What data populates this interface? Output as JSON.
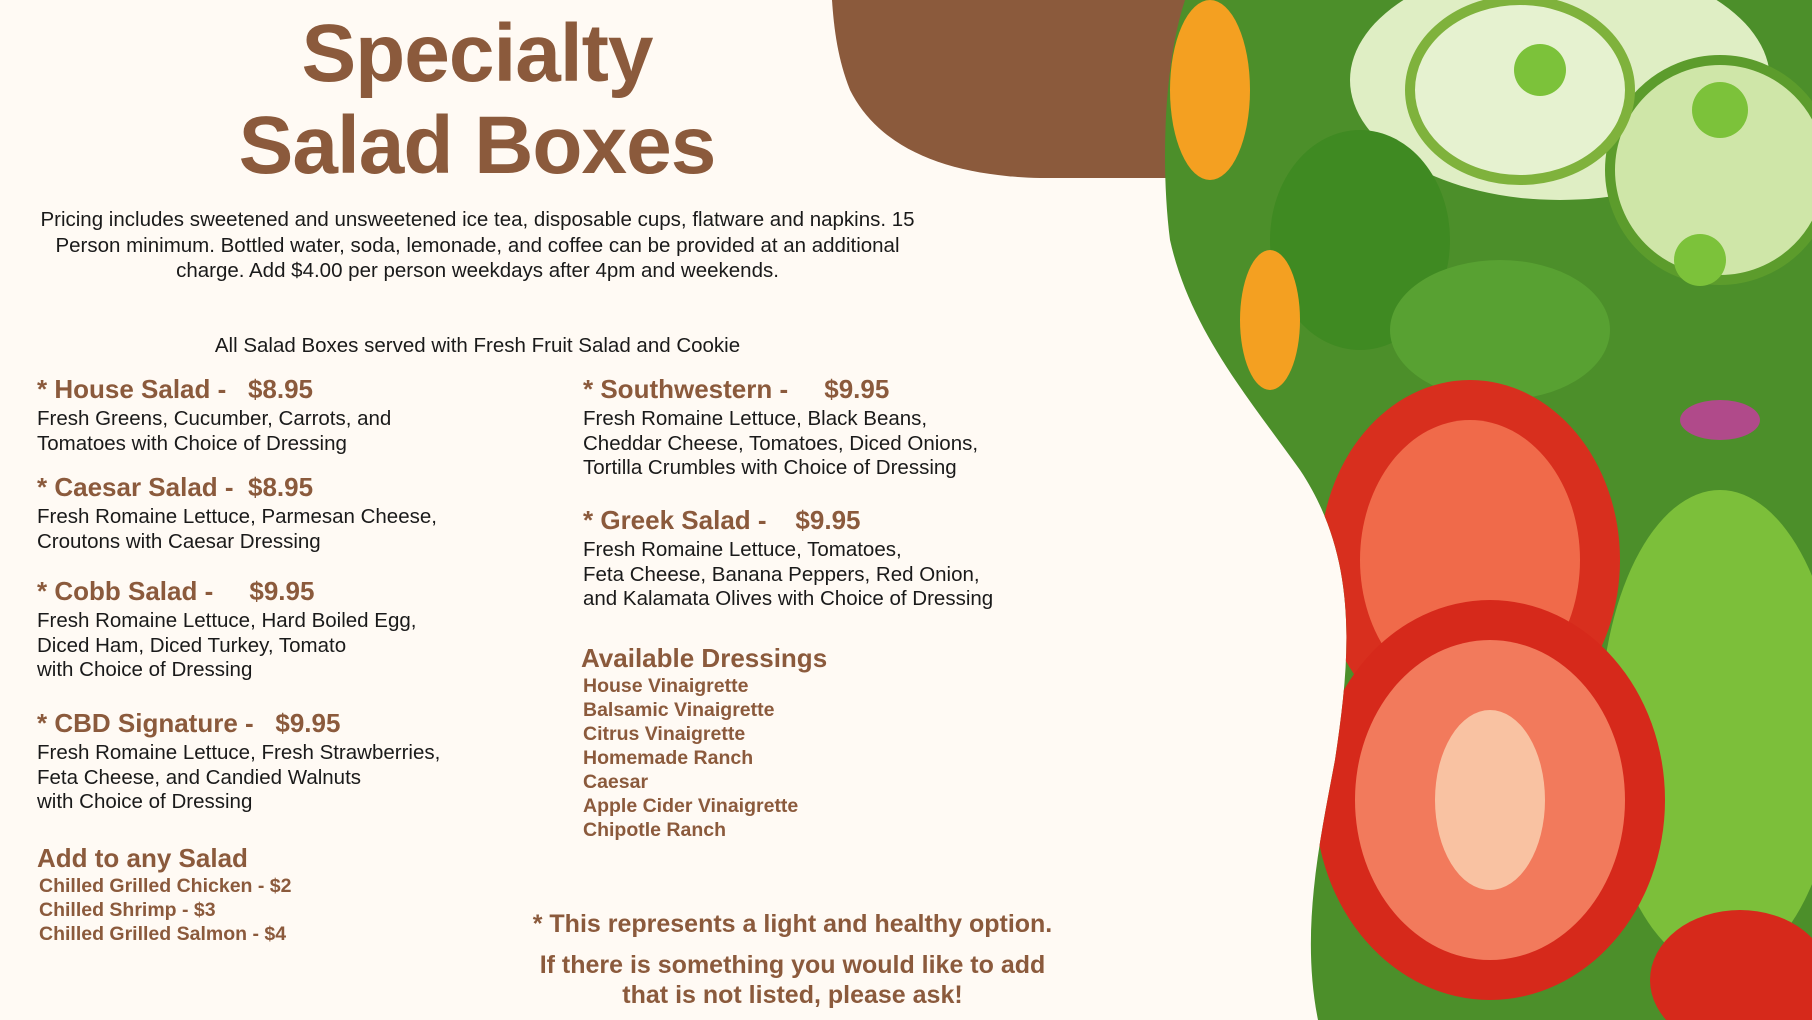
{
  "title": {
    "line1": "Specialty",
    "line2": "Salad Boxes"
  },
  "intro": "Pricing includes sweetened and unsweetened ice tea, disposable cups, flatware and napkins. 15 Person minimum. Bottled water, soda, lemonade, and coffee can be provided at an additional charge. Add $4.00 per person weekdays after 4pm and weekends.",
  "served_with": "All Salad Boxes served with Fresh Fruit Salad and Cookie",
  "salads": [
    {
      "heading": "* House Salad -   $8.95",
      "desc": "Fresh Greens, Cucumber, Carrots, and\nTomatoes with Choice of Dressing"
    },
    {
      "heading": "* Caesar Salad -  $8.95",
      "desc": "Fresh Romaine Lettuce, Parmesan Cheese,\nCroutons with Caesar Dressing"
    },
    {
      "heading": "* Cobb Salad -     $9.95",
      "desc": "Fresh Romaine Lettuce, Hard Boiled Egg,\nDiced Ham, Diced Turkey, Tomato\nwith Choice of Dressing"
    },
    {
      "heading": "* CBD Signature -   $9.95",
      "desc": "Fresh Romaine Lettuce, Fresh Strawberries,\nFeta Cheese, and Candied Walnuts\nwith Choice of Dressing"
    },
    {
      "heading": "* Southwestern -     $9.95",
      "desc": "Fresh Romaine Lettuce, Black Beans,\nCheddar Cheese, Tomatoes, Diced Onions,\nTortilla Crumbles with Choice of Dressing"
    },
    {
      "heading": "* Greek Salad -    $9.95",
      "desc": "Fresh Romaine Lettuce, Tomatoes,\nFeta Cheese, Banana Peppers, Red Onion,\nand Kalamata Olives with Choice of Dressing"
    }
  ],
  "add_ons": {
    "heading": "Add to any Salad",
    "items": [
      "Chilled Grilled Chicken - $2",
      "Chilled Shrimp - $3",
      "Chilled Grilled Salmon - $4"
    ]
  },
  "dressings": {
    "heading": "Available Dressings",
    "items": [
      "House Vinaigrette",
      "Balsamic Vinaigrette",
      "Citrus Vinaigrette",
      "Homemade Ranch",
      "Caesar",
      "Apple Cider Vinaigrette",
      "Chipotle Ranch"
    ]
  },
  "footer": {
    "note": "* This represents a light and healthy option.",
    "ask": "If there is something you would like to add that is not listed, please ask!"
  },
  "colors": {
    "brand_brown": "#8b5a3c",
    "background": "#fffaf4"
  }
}
